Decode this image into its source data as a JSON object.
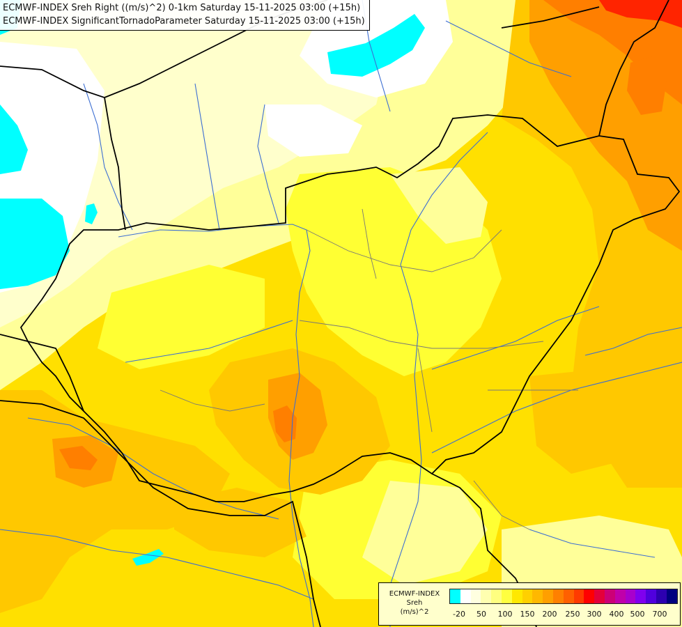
{
  "header": {
    "line1": "ECMWF-INDEX Sreh Right ((m/s)^2) 0-1km Saturday 15-11-2025 03:00 (+15h)",
    "line2": "ECMWF-INDEX SignificantTornadoParameter Saturday 15-11-2025 03:00 (+15h)"
  },
  "legend": {
    "title_line1": "ECMWF-INDEX",
    "title_line2": "Sreh",
    "title_line3": "(m/s)^2",
    "colors": [
      "#00ffff",
      "#ffffff",
      "#ffffe0",
      "#ffffb0",
      "#ffff80",
      "#ffff40",
      "#ffe800",
      "#ffd000",
      "#ffb800",
      "#ff9f00",
      "#ff8000",
      "#ff6000",
      "#ff3a00",
      "#ff0000",
      "#e4003a",
      "#cc0077",
      "#c000aa",
      "#a800cc",
      "#8000ee",
      "#5000dd",
      "#2d00b0",
      "#000080"
    ],
    "labels": [
      "-20",
      "50",
      "100",
      "150",
      "200",
      "250",
      "300",
      "400",
      "500",
      "700"
    ]
  },
  "map": {
    "colors": {
      "cyan": "#00ffff",
      "white": "#ffffff",
      "pale": "#ffffcc",
      "light_yellow": "#ffff99",
      "yellow": "#ffff33",
      "gold": "#ffe000",
      "amber": "#ffc800",
      "orange": "#ff9f00",
      "dark_orange": "#ff7f00",
      "red": "#ff2400",
      "border": "#000000",
      "river": "#3c6ed2",
      "region": "#787878"
    }
  }
}
